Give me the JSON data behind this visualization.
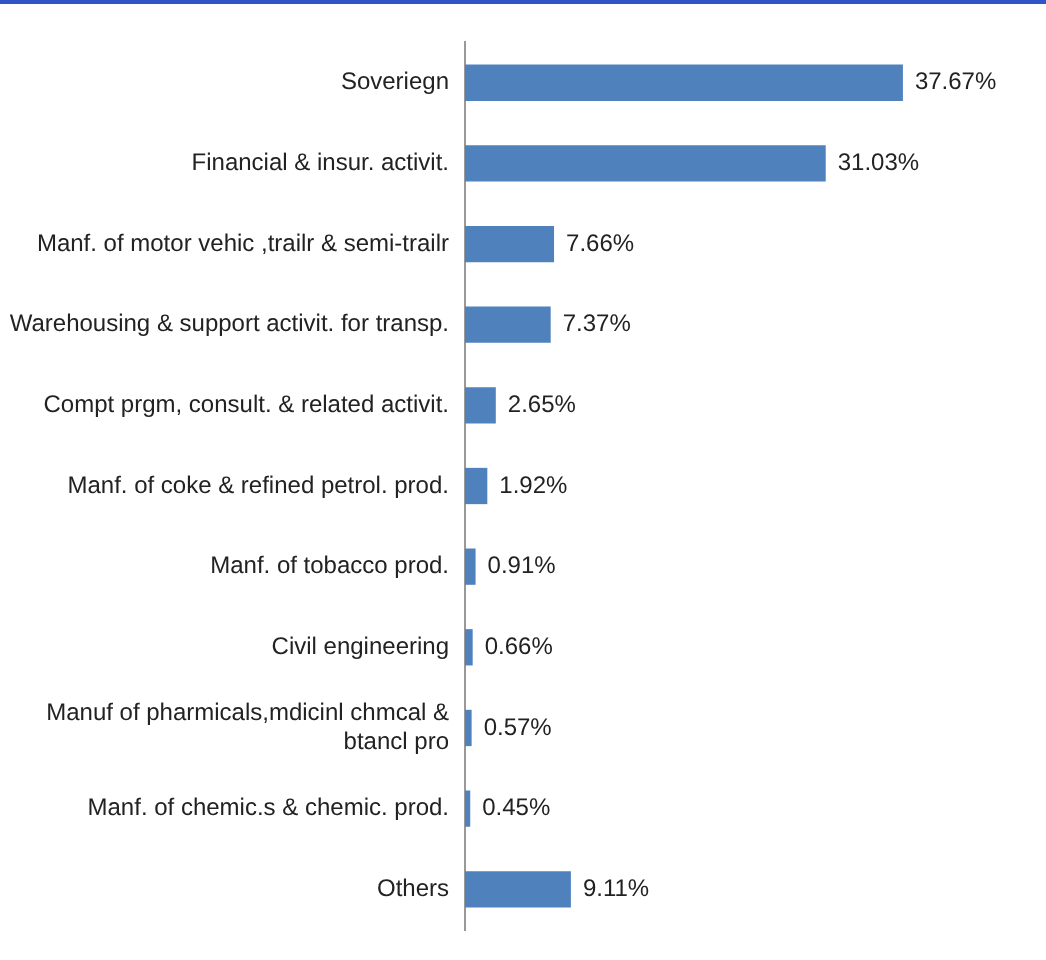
{
  "chart_data": {
    "type": "bar",
    "orientation": "horizontal",
    "categories": [
      "Soveriegn",
      "Financial & insur. activit.",
      "Manf. of motor vehic ,trailr & semi-trailr",
      "Warehousing & support activit. for transp.",
      "Compt prgm, consult. & related activit.",
      "Manf. of coke & refined petrol. prod.",
      "Manf. of tobacco prod.",
      "Civil engineering",
      "Manuf of pharmicals,mdicinl chmcal & btancl pro",
      "Manf. of chemic.s & chemic. prod.",
      "Others"
    ],
    "values": [
      37.67,
      31.03,
      7.66,
      7.37,
      2.65,
      1.92,
      0.91,
      0.66,
      0.57,
      0.45,
      9.11
    ],
    "value_labels": [
      "37.67%",
      "31.03%",
      "7.66%",
      "7.37%",
      "2.65%",
      "1.92%",
      "0.91%",
      "0.66%",
      "0.57%",
      "0.45%",
      "9.11%"
    ],
    "color": "#4f81bd",
    "grid": false,
    "legend": false,
    "tick_labels": "y"
  }
}
